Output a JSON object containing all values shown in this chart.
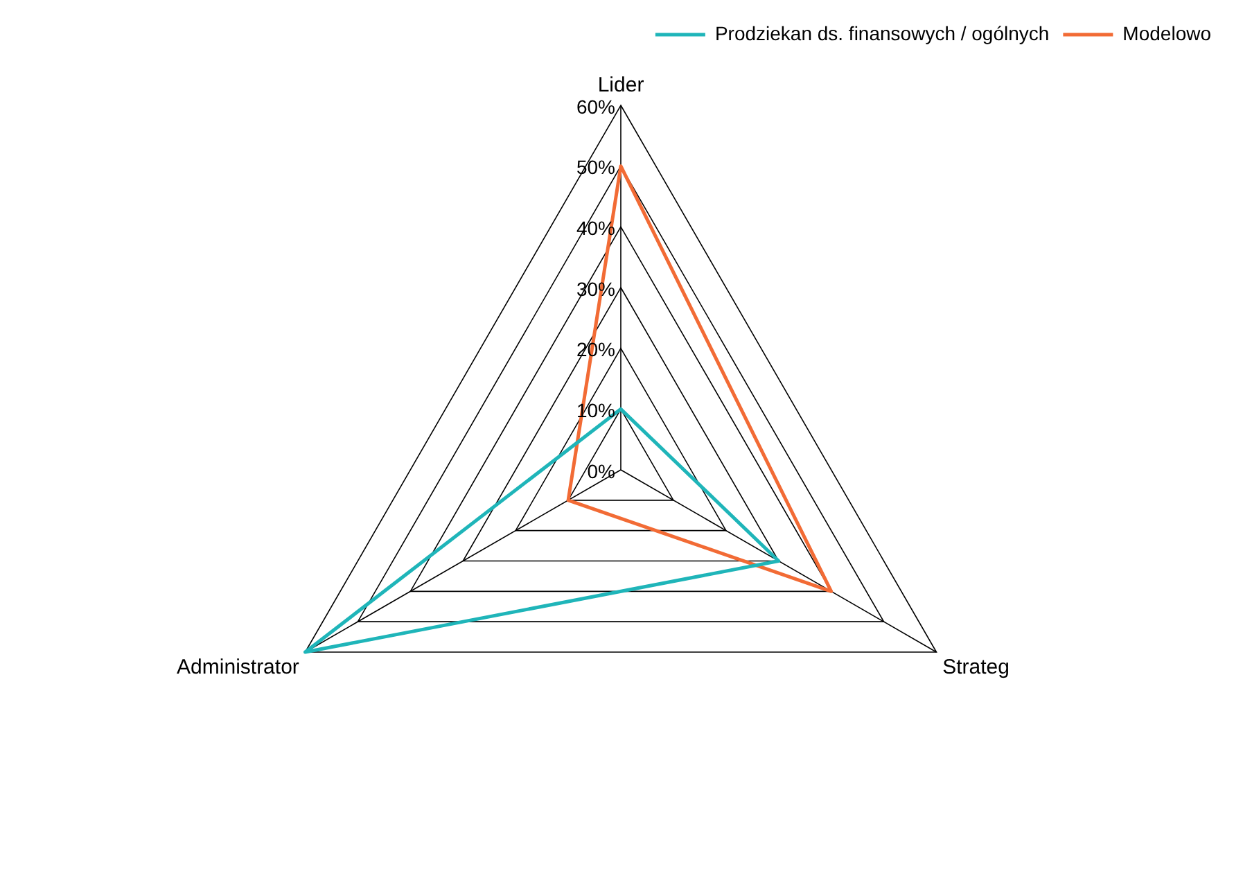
{
  "chart_data": {
    "type": "radar",
    "categories": [
      "Lider",
      "Strateg",
      "Administrator"
    ],
    "series": [
      {
        "name": "Prodziekan ds. finansowych / ogólnych",
        "color": "#1fb5b9",
        "values": [
          10,
          30,
          60
        ]
      },
      {
        "name": "Modelowo",
        "color": "#f26b35",
        "values": [
          50,
          40,
          10
        ]
      }
    ],
    "ylim": [
      0,
      60
    ],
    "yticks": [
      {
        "value": 0,
        "label": "0%"
      },
      {
        "value": 10,
        "label": "10%"
      },
      {
        "value": 20,
        "label": "20%"
      },
      {
        "value": 30,
        "label": "30%"
      },
      {
        "value": 40,
        "label": "40%"
      },
      {
        "value": 50,
        "label": "50%"
      },
      {
        "value": 60,
        "label": "60%"
      }
    ],
    "grid": true,
    "legend": "top right",
    "marker": "none",
    "line_style": "solid"
  }
}
